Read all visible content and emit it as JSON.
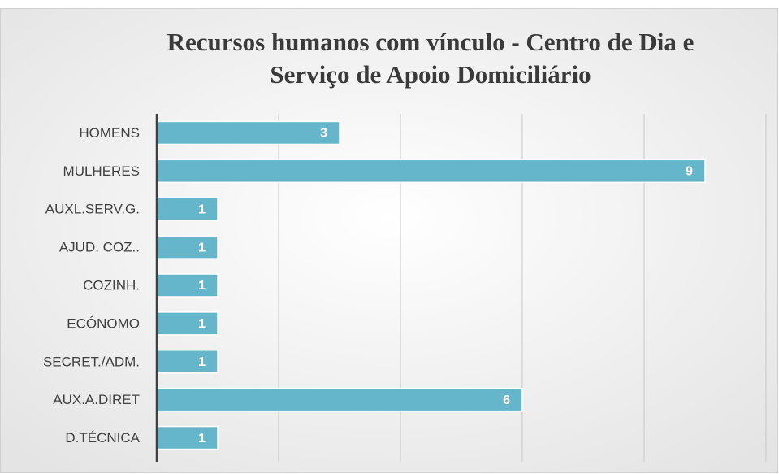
{
  "chart_data": {
    "type": "bar",
    "orientation": "horizontal",
    "title": "Recursos humanos com vínculo -  Centro de Dia e Serviço de Apoio Domiciliário",
    "categories": [
      "HOMENS",
      "MULHERES",
      "AUXL.SERV.G.",
      "AJUD. COZ..",
      "COZINH.",
      "ECÓNOMO",
      "SECRET./ADM.",
      "AUX.A.DIRET",
      "D.TÉCNICA"
    ],
    "values": [
      3,
      9,
      1,
      1,
      1,
      1,
      1,
      6,
      1
    ],
    "color": "#65b6ca",
    "xlim": [
      0,
      10
    ],
    "xticks": [
      0,
      2,
      4,
      6,
      8,
      10
    ],
    "grid": true
  }
}
